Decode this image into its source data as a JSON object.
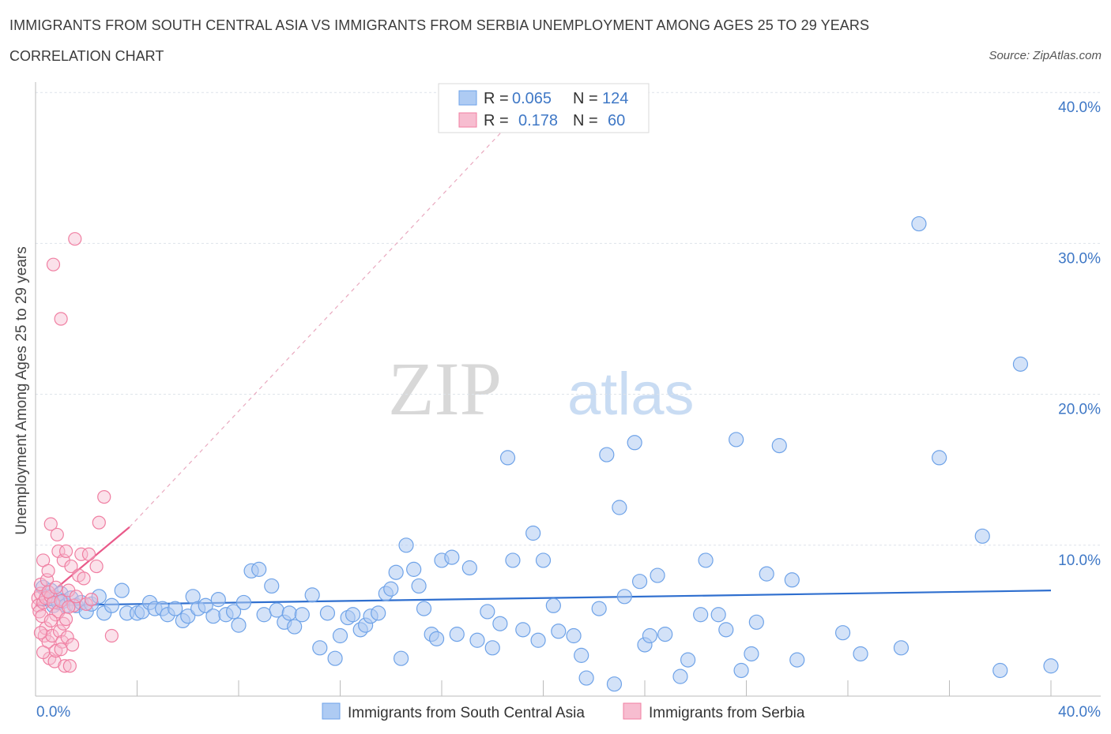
{
  "header": {
    "title": "IMMIGRANTS FROM SOUTH CENTRAL ASIA VS IMMIGRANTS FROM SERBIA UNEMPLOYMENT AMONG AGES 25 TO 29 YEARS",
    "subtitle": "CORRELATION CHART",
    "source": "Source: ZipAtlas.com"
  },
  "watermark": {
    "zip": "ZIP",
    "atlas": "atlas"
  },
  "colors": {
    "blue": "#6fa3e8",
    "blue_fill": "#aecbf3",
    "blue_line": "#2f6fcf",
    "pink": "#f07fa2",
    "pink_fill": "#f7bdd0",
    "pink_line": "#e95a8a",
    "grid": "#dde2ea",
    "axis_text": "#3f78c6"
  },
  "legend": {
    "rows": [
      {
        "r_label": "R = ",
        "r_value": "0.065",
        "n_label": "N = ",
        "n_value": "124"
      },
      {
        "r_label": "R = ",
        "r_value": "0.178",
        "n_label": "N = ",
        "n_value": "60"
      }
    ]
  },
  "bottom_legend": {
    "series_a": "Immigrants from South Central Asia",
    "series_b": "Immigrants from Serbia"
  },
  "chart_data": {
    "type": "scatter",
    "title": "IMMIGRANTS FROM SOUTH CENTRAL ASIA VS IMMIGRANTS FROM SERBIA UNEMPLOYMENT AMONG AGES 25 TO 29 YEARS",
    "xlabel": "",
    "ylabel": "Unemployment Among Ages 25 to 29 years",
    "xlim": [
      0,
      40
    ],
    "ylim": [
      0,
      40
    ],
    "x_tick_labels": [
      "0.0%",
      "40.0%"
    ],
    "y_tick_labels": [
      "10.0%",
      "20.0%",
      "30.0%",
      "40.0%"
    ],
    "y_ticks": [
      10,
      20,
      30,
      40
    ],
    "grid": true,
    "series": [
      {
        "name": "Immigrants from South Central Asia",
        "R": 0.065,
        "N": 124,
        "trend": {
          "x": [
            0,
            40
          ],
          "y": [
            6.0,
            7.0
          ]
        },
        "points": [
          [
            0.3,
            7.2
          ],
          [
            0.5,
            6.6
          ],
          [
            0.6,
            7.0
          ],
          [
            0.7,
            6.0
          ],
          [
            0.8,
            6.5
          ],
          [
            0.9,
            6.2
          ],
          [
            1.0,
            6.8
          ],
          [
            1.1,
            6.3
          ],
          [
            1.2,
            6.0
          ],
          [
            1.4,
            6.5
          ],
          [
            1.6,
            6.0
          ],
          [
            1.8,
            6.2
          ],
          [
            2.0,
            5.6
          ],
          [
            2.2,
            6.1
          ],
          [
            2.5,
            6.6
          ],
          [
            2.7,
            5.5
          ],
          [
            3.0,
            6.0
          ],
          [
            3.4,
            7.0
          ],
          [
            3.6,
            5.5
          ],
          [
            4.0,
            5.5
          ],
          [
            4.2,
            5.6
          ],
          [
            4.5,
            6.2
          ],
          [
            4.7,
            5.8
          ],
          [
            5.0,
            5.8
          ],
          [
            5.2,
            5.4
          ],
          [
            5.5,
            5.8
          ],
          [
            5.8,
            5.0
          ],
          [
            6.0,
            5.3
          ],
          [
            6.2,
            6.6
          ],
          [
            6.4,
            5.8
          ],
          [
            6.7,
            6.0
          ],
          [
            7.0,
            5.3
          ],
          [
            7.2,
            6.4
          ],
          [
            7.5,
            5.4
          ],
          [
            7.8,
            5.6
          ],
          [
            8.0,
            4.7
          ],
          [
            8.2,
            6.2
          ],
          [
            8.5,
            8.3
          ],
          [
            8.8,
            8.4
          ],
          [
            9.0,
            5.4
          ],
          [
            9.3,
            7.3
          ],
          [
            9.5,
            5.7
          ],
          [
            9.8,
            4.9
          ],
          [
            10.0,
            5.5
          ],
          [
            10.2,
            4.6
          ],
          [
            10.5,
            5.4
          ],
          [
            10.9,
            6.7
          ],
          [
            11.2,
            3.2
          ],
          [
            11.5,
            5.5
          ],
          [
            11.8,
            2.5
          ],
          [
            12.0,
            4.0
          ],
          [
            12.3,
            5.2
          ],
          [
            12.5,
            5.4
          ],
          [
            12.8,
            4.4
          ],
          [
            13.0,
            4.7
          ],
          [
            13.2,
            5.3
          ],
          [
            13.5,
            5.5
          ],
          [
            13.8,
            6.8
          ],
          [
            14.0,
            7.1
          ],
          [
            14.2,
            8.2
          ],
          [
            14.4,
            2.5
          ],
          [
            14.6,
            10.0
          ],
          [
            14.9,
            8.4
          ],
          [
            15.1,
            7.3
          ],
          [
            15.3,
            5.8
          ],
          [
            15.6,
            4.1
          ],
          [
            15.8,
            3.8
          ],
          [
            16.0,
            9.0
          ],
          [
            16.4,
            9.2
          ],
          [
            16.6,
            4.1
          ],
          [
            17.1,
            8.5
          ],
          [
            17.4,
            3.7
          ],
          [
            17.8,
            5.6
          ],
          [
            18.0,
            3.2
          ],
          [
            18.3,
            4.8
          ],
          [
            18.6,
            15.8
          ],
          [
            18.8,
            9.0
          ],
          [
            19.2,
            4.4
          ],
          [
            19.6,
            10.8
          ],
          [
            19.8,
            3.7
          ],
          [
            20.0,
            9.0
          ],
          [
            20.4,
            6.0
          ],
          [
            20.6,
            4.3
          ],
          [
            21.2,
            4.0
          ],
          [
            21.5,
            2.7
          ],
          [
            21.7,
            1.2
          ],
          [
            22.2,
            5.8
          ],
          [
            22.5,
            16.0
          ],
          [
            22.8,
            0.8
          ],
          [
            23.0,
            12.5
          ],
          [
            23.2,
            6.6
          ],
          [
            23.6,
            16.8
          ],
          [
            23.8,
            7.6
          ],
          [
            24.0,
            3.4
          ],
          [
            24.2,
            4.0
          ],
          [
            24.5,
            8.0
          ],
          [
            24.8,
            4.1
          ],
          [
            25.4,
            1.3
          ],
          [
            25.7,
            2.4
          ],
          [
            26.2,
            5.4
          ],
          [
            26.4,
            9.0
          ],
          [
            26.9,
            5.4
          ],
          [
            27.2,
            4.4
          ],
          [
            27.6,
            17.0
          ],
          [
            27.8,
            1.7
          ],
          [
            28.2,
            2.8
          ],
          [
            28.4,
            4.9
          ],
          [
            28.8,
            8.1
          ],
          [
            29.3,
            16.6
          ],
          [
            29.8,
            7.7
          ],
          [
            30.0,
            2.4
          ],
          [
            31.8,
            4.2
          ],
          [
            32.5,
            2.8
          ],
          [
            34.1,
            3.2
          ],
          [
            34.8,
            31.3
          ],
          [
            35.6,
            15.8
          ],
          [
            37.3,
            10.6
          ],
          [
            38.0,
            1.7
          ],
          [
            38.8,
            22.0
          ],
          [
            40.0,
            2.0
          ]
        ]
      },
      {
        "name": "Immigrants from Serbia",
        "R": 0.178,
        "N": 60,
        "trend": {
          "x": [
            0,
            3.7
          ],
          "y": [
            6.0,
            11.2
          ]
        },
        "points": [
          [
            0.1,
            6.5
          ],
          [
            0.1,
            6.0
          ],
          [
            0.15,
            5.6
          ],
          [
            0.2,
            6.8
          ],
          [
            0.2,
            7.4
          ],
          [
            0.25,
            5.3
          ],
          [
            0.3,
            6.2
          ],
          [
            0.3,
            9.0
          ],
          [
            0.35,
            4.0
          ],
          [
            0.4,
            4.5
          ],
          [
            0.4,
            6.5
          ],
          [
            0.45,
            7.7
          ],
          [
            0.5,
            3.6
          ],
          [
            0.5,
            8.3
          ],
          [
            0.55,
            2.5
          ],
          [
            0.6,
            6.6
          ],
          [
            0.6,
            11.4
          ],
          [
            0.65,
            4.0
          ],
          [
            0.7,
            6.2
          ],
          [
            0.7,
            28.6
          ],
          [
            0.75,
            2.3
          ],
          [
            0.8,
            3.0
          ],
          [
            0.8,
            5.4
          ],
          [
            0.85,
            10.7
          ],
          [
            0.9,
            5.6
          ],
          [
            0.9,
            9.6
          ],
          [
            0.95,
            4.3
          ],
          [
            1.0,
            6.3
          ],
          [
            1.0,
            25.0
          ],
          [
            1.05,
            3.6
          ],
          [
            1.1,
            4.8
          ],
          [
            1.1,
            9.0
          ],
          [
            1.15,
            2.0
          ],
          [
            1.2,
            5.1
          ],
          [
            1.2,
            9.6
          ],
          [
            1.25,
            3.9
          ],
          [
            1.3,
            7.0
          ],
          [
            1.35,
            2.0
          ],
          [
            1.4,
            8.6
          ],
          [
            1.45,
            3.4
          ],
          [
            1.5,
            6.0
          ],
          [
            1.55,
            30.3
          ],
          [
            1.6,
            6.6
          ],
          [
            1.7,
            8.0
          ],
          [
            1.8,
            9.4
          ],
          [
            1.9,
            7.8
          ],
          [
            2.0,
            6.1
          ],
          [
            2.1,
            9.4
          ],
          [
            2.2,
            6.4
          ],
          [
            2.4,
            8.6
          ],
          [
            2.5,
            11.5
          ],
          [
            2.7,
            13.2
          ],
          [
            3.0,
            4.0
          ],
          [
            0.2,
            4.2
          ],
          [
            0.3,
            2.9
          ],
          [
            0.5,
            6.9
          ],
          [
            0.6,
            5.0
          ],
          [
            0.8,
            7.2
          ],
          [
            1.0,
            3.1
          ],
          [
            1.3,
            5.9
          ]
        ]
      }
    ]
  }
}
